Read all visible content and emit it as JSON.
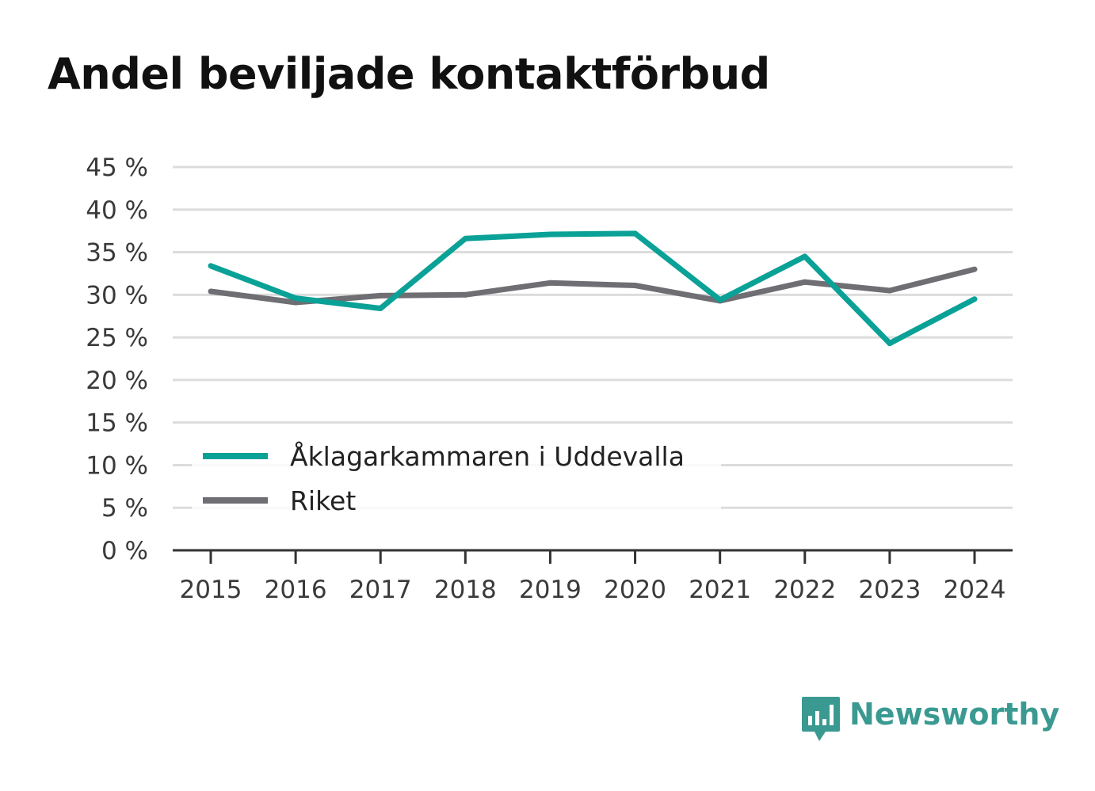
{
  "title": "Andel beviljade kontaktförbud",
  "brand": {
    "name": "Newsworthy",
    "icon": "newsworthy-logo-icon",
    "color": "#3a9a92"
  },
  "chart_data": {
    "type": "line",
    "title": "Andel beviljade kontaktförbud",
    "xlabel": "",
    "ylabel": "",
    "x": [
      "2015",
      "2016",
      "2017",
      "2018",
      "2019",
      "2020",
      "2021",
      "2022",
      "2023",
      "2024"
    ],
    "ylim": [
      0,
      45
    ],
    "yticks": [
      0,
      5,
      10,
      15,
      20,
      25,
      30,
      35,
      40,
      45
    ],
    "ytick_labels": [
      "0 %",
      "5 %",
      "10 %",
      "15 %",
      "20 %",
      "25 %",
      "30 %",
      "35 %",
      "40 %",
      "45 %"
    ],
    "grid": true,
    "legend_position": "bottom-left",
    "series": [
      {
        "name": "Åklagarkammaren i Uddevalla",
        "color": "#0aa197",
        "values": [
          33.4,
          29.6,
          28.4,
          36.6,
          37.1,
          37.2,
          29.4,
          34.5,
          24.3,
          29.5
        ]
      },
      {
        "name": "Riket",
        "color": "#6e6e73",
        "values": [
          30.4,
          29.1,
          29.9,
          30.0,
          31.4,
          31.1,
          29.3,
          31.5,
          30.5,
          33.0
        ]
      }
    ]
  }
}
